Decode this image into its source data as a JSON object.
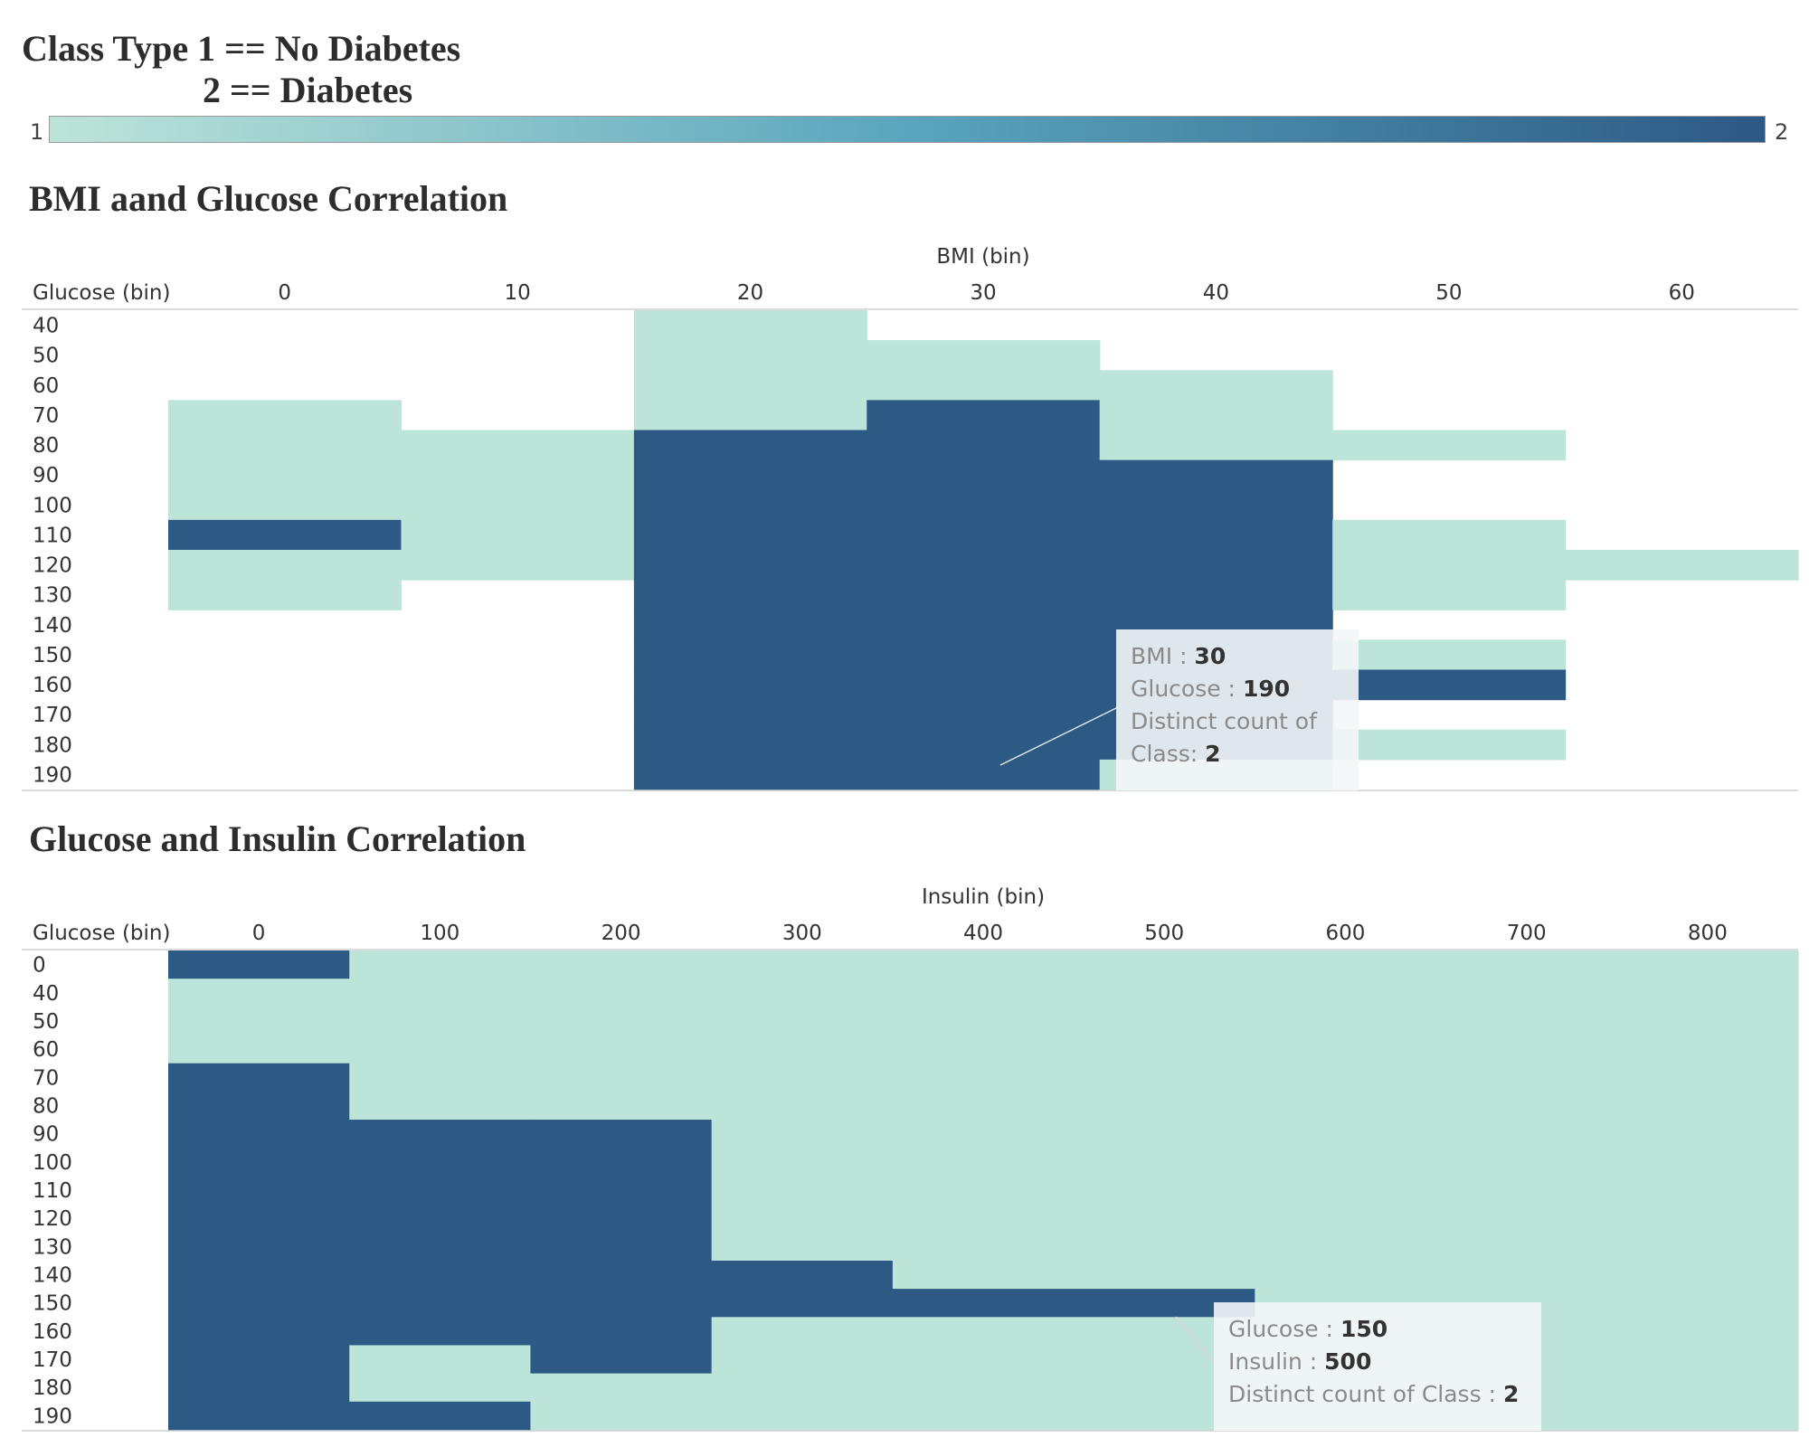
{
  "legend": {
    "title_line1": "Class Type 1 == No Diabetes",
    "title_line2": "2 == Diabetes",
    "min_label": "1",
    "max_label": "2",
    "color_low": "#bde4d9",
    "color_high": "#2d5985"
  },
  "colors": {
    "class1": "#bde4d9",
    "class2": "#2d5985",
    "axis_line": "#cfcfcf",
    "text": "#333333"
  },
  "tooltip1": {
    "line1_label": "BMI :",
    "line1_value": "30",
    "line2_label": "Glucose :",
    "line2_value": "190",
    "line3_label": "Distinct count of",
    "line4_label": "Class:",
    "line4_value": "2"
  },
  "tooltip2": {
    "line1_label": "Glucose :",
    "line1_value": "150",
    "line2_label": "Insulin :",
    "line2_value": "500",
    "line3_label": "Distinct count of Class :",
    "line3_value": "2"
  },
  "chart_data": [
    {
      "type": "heatmap",
      "title": "BMI aand Glucose Correlation",
      "xlabel": "BMI (bin)",
      "ylabel": "Glucose (bin)",
      "x": [
        0,
        10,
        20,
        30,
        40,
        50,
        60
      ],
      "y": [
        40,
        50,
        60,
        70,
        80,
        90,
        100,
        110,
        120,
        130,
        140,
        150,
        160,
        170,
        180,
        190
      ],
      "values": [
        [
          null,
          null,
          1,
          null,
          null,
          null,
          null
        ],
        [
          null,
          null,
          1,
          1,
          null,
          null,
          null
        ],
        [
          null,
          null,
          1,
          1,
          1,
          null,
          null
        ],
        [
          1,
          null,
          1,
          2,
          1,
          null,
          null
        ],
        [
          1,
          1,
          2,
          2,
          1,
          1,
          null
        ],
        [
          1,
          1,
          2,
          2,
          2,
          null,
          null
        ],
        [
          1,
          1,
          2,
          2,
          2,
          null,
          null
        ],
        [
          2,
          1,
          2,
          2,
          2,
          1,
          null
        ],
        [
          1,
          1,
          2,
          2,
          2,
          1,
          1
        ],
        [
          1,
          null,
          2,
          2,
          2,
          1,
          null
        ],
        [
          null,
          null,
          2,
          2,
          2,
          null,
          null
        ],
        [
          null,
          null,
          2,
          2,
          2,
          1,
          null
        ],
        [
          null,
          null,
          2,
          2,
          2,
          2,
          null
        ],
        [
          null,
          null,
          2,
          2,
          2,
          null,
          null
        ],
        [
          null,
          null,
          2,
          2,
          2,
          1,
          null
        ],
        [
          null,
          null,
          2,
          2,
          1,
          null,
          null
        ]
      ]
    },
    {
      "type": "heatmap",
      "title": "Glucose and Insulin Correlation",
      "xlabel": "Insulin (bin)",
      "ylabel": "Glucose (bin)",
      "x": [
        0,
        100,
        200,
        300,
        400,
        500,
        600,
        700,
        800
      ],
      "y": [
        0,
        40,
        50,
        60,
        70,
        80,
        90,
        100,
        110,
        120,
        130,
        140,
        150,
        160,
        170,
        180,
        190
      ],
      "values": [
        [
          2,
          1,
          1,
          1,
          1,
          1,
          1,
          1,
          1
        ],
        [
          1,
          1,
          1,
          1,
          1,
          1,
          1,
          1,
          1
        ],
        [
          1,
          1,
          1,
          1,
          1,
          1,
          1,
          1,
          1
        ],
        [
          1,
          1,
          1,
          1,
          1,
          1,
          1,
          1,
          1
        ],
        [
          2,
          1,
          1,
          1,
          1,
          1,
          1,
          1,
          1
        ],
        [
          2,
          1,
          1,
          1,
          1,
          1,
          1,
          1,
          1
        ],
        [
          2,
          2,
          2,
          1,
          1,
          1,
          1,
          1,
          1
        ],
        [
          2,
          2,
          2,
          1,
          1,
          1,
          1,
          1,
          1
        ],
        [
          2,
          2,
          2,
          1,
          1,
          1,
          1,
          1,
          1
        ],
        [
          2,
          2,
          2,
          1,
          1,
          1,
          1,
          1,
          1
        ],
        [
          2,
          2,
          2,
          1,
          1,
          1,
          1,
          1,
          1
        ],
        [
          2,
          2,
          2,
          2,
          1,
          1,
          1,
          1,
          1
        ],
        [
          2,
          2,
          2,
          2,
          2,
          2,
          1,
          1,
          1
        ],
        [
          2,
          2,
          2,
          1,
          1,
          1,
          1,
          1,
          1
        ],
        [
          2,
          1,
          2,
          1,
          1,
          1,
          1,
          1,
          1
        ],
        [
          2,
          1,
          1,
          1,
          1,
          1,
          1,
          1,
          1
        ],
        [
          2,
          2,
          1,
          1,
          1,
          1,
          1,
          1,
          1
        ]
      ]
    }
  ]
}
